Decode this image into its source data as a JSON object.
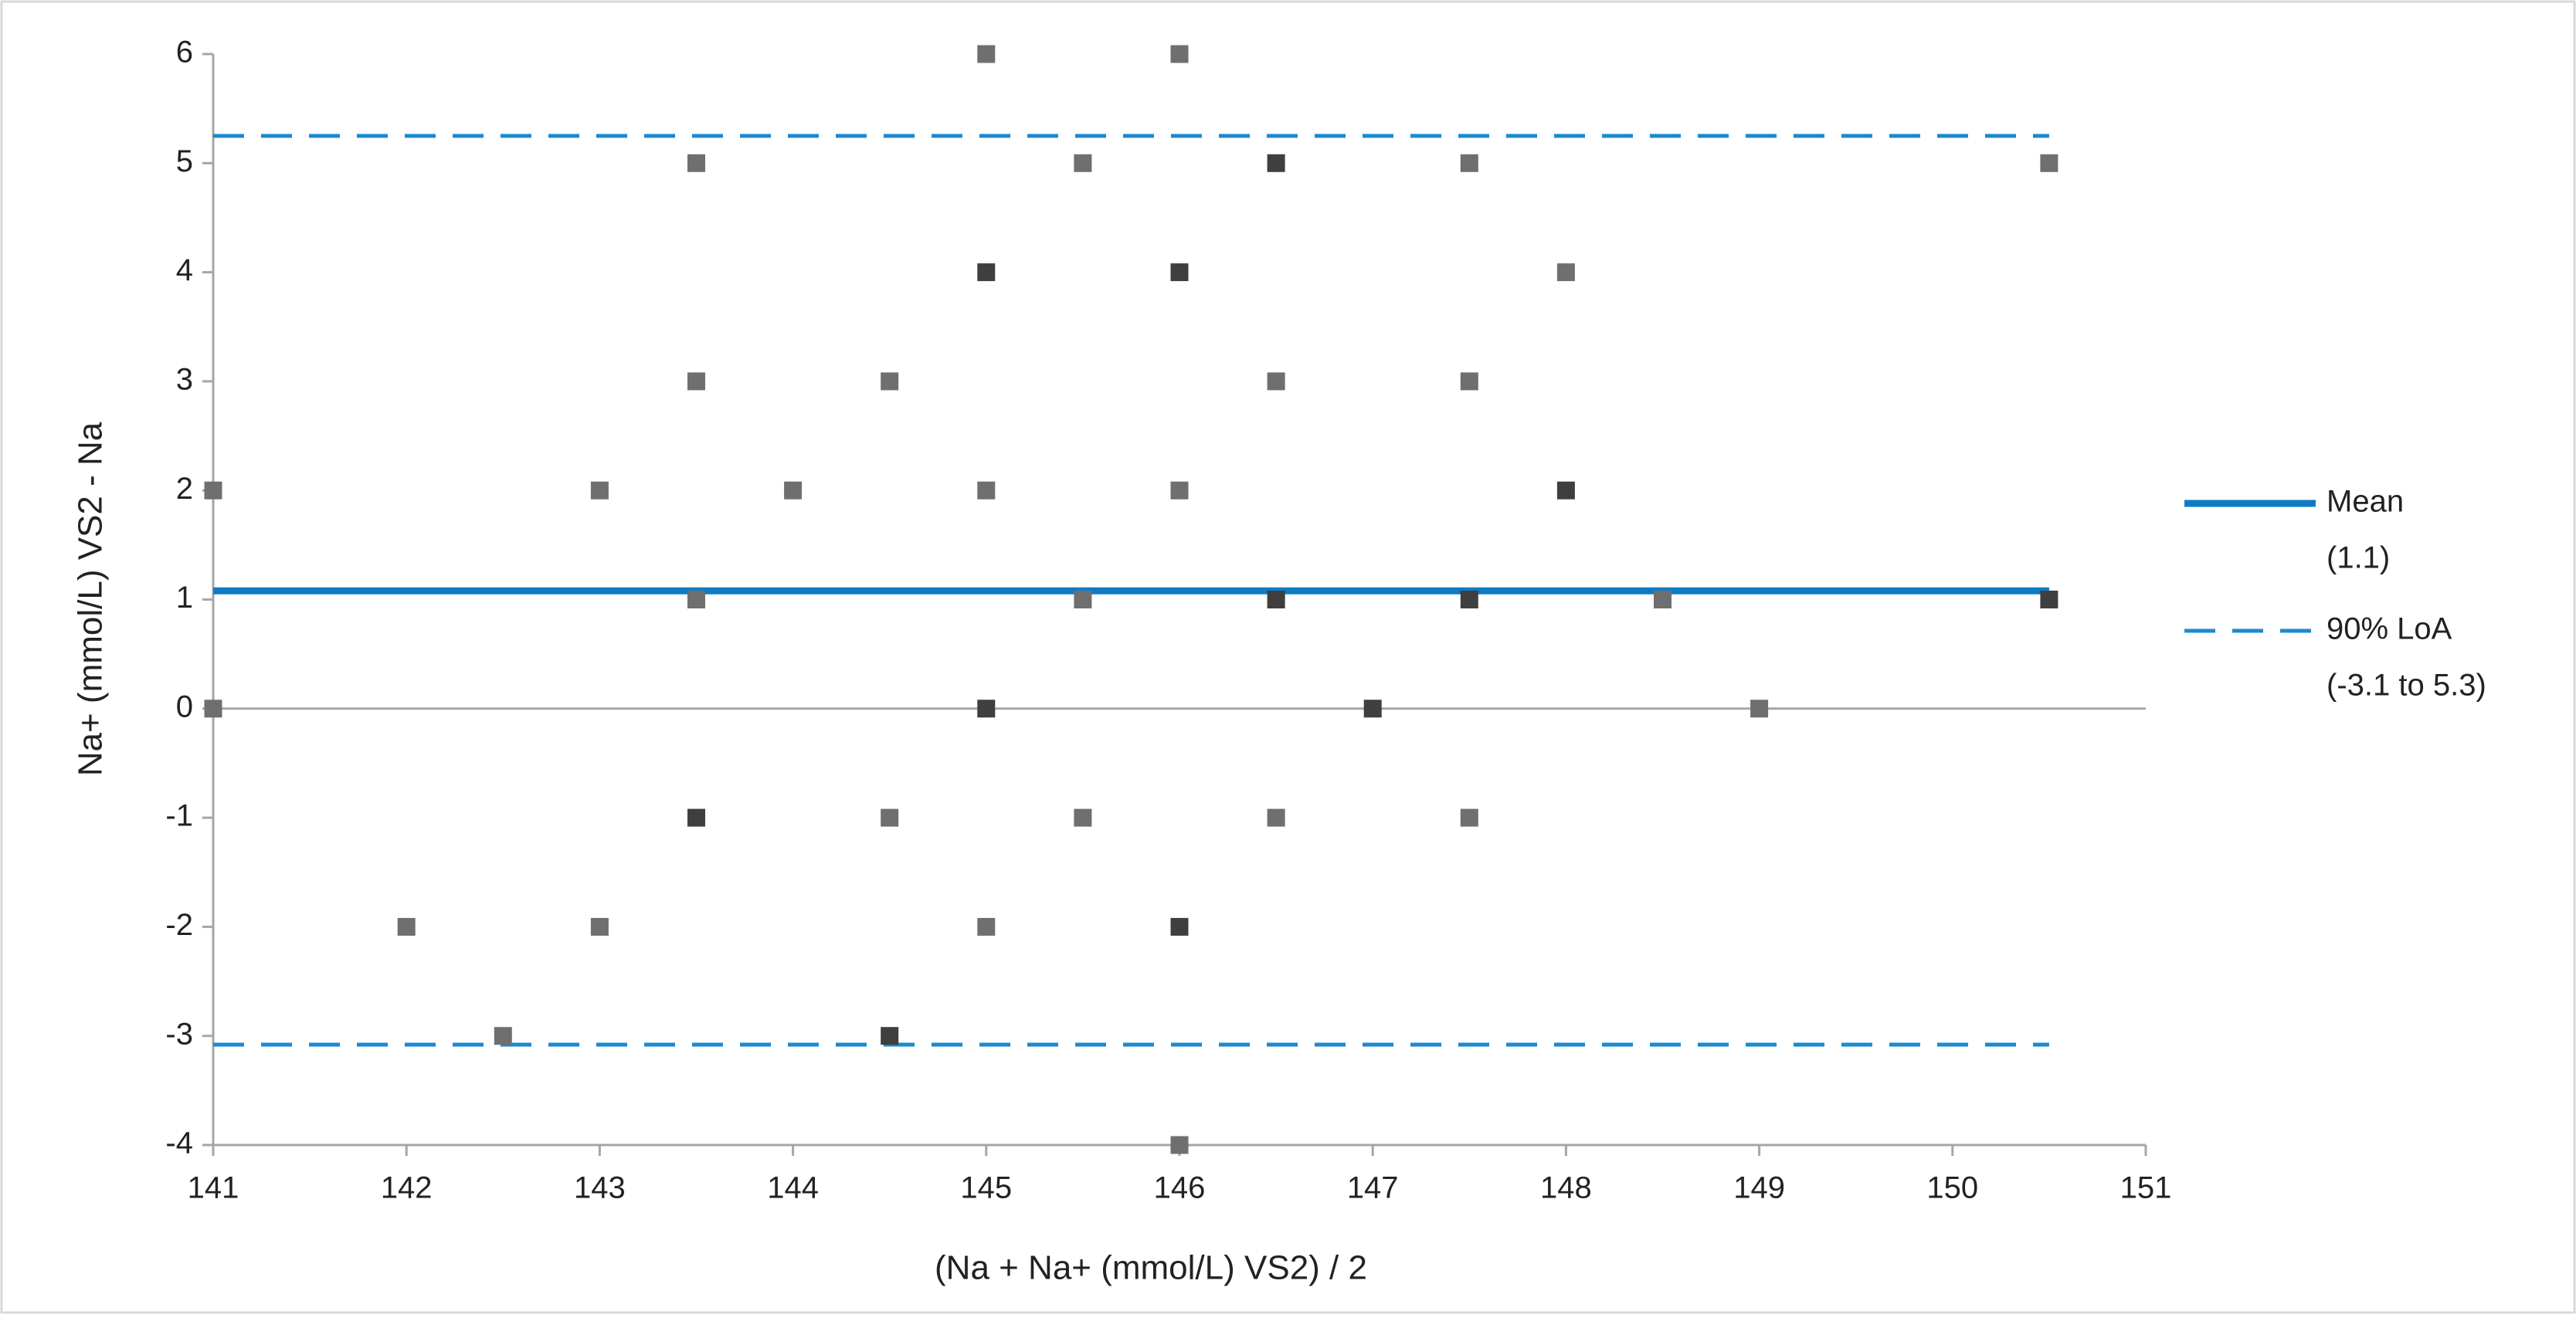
{
  "chart_data": {
    "type": "scatter",
    "xlabel": "(Na + Na+ (mmol/L) VS2) / 2",
    "ylabel": "Na+ (mmol/L) VS2 - Na",
    "x": [
      141,
      141,
      142,
      142.5,
      143,
      143,
      143.5,
      143.5,
      143.5,
      143.5,
      144,
      144.5,
      144.5,
      144.5,
      145,
      145,
      145,
      145,
      145,
      145.5,
      145.5,
      145.5,
      146,
      146,
      146,
      146,
      146,
      146.5,
      146.5,
      146.5,
      146.5,
      147,
      147.5,
      147.5,
      147.5,
      147.5,
      148,
      148,
      148.5,
      149,
      150.5,
      150.5
    ],
    "values": [
      2,
      0,
      -2,
      -3,
      2,
      -2,
      5,
      3,
      1,
      -1,
      2,
      3,
      -1,
      -3,
      6,
      4,
      2,
      0,
      -2,
      5,
      1,
      -1,
      6,
      4,
      2,
      -2,
      -4,
      5,
      3,
      1,
      -1,
      0,
      5,
      3,
      1,
      -1,
      4,
      2,
      1,
      0,
      5,
      1
    ],
    "point_colors": [
      "#6f6f6f",
      "#6f6f6f",
      "#6f6f6f",
      "#6f6f6f",
      "#6f6f6f",
      "#6f6f6f",
      "#6f6f6f",
      "#6f6f6f",
      "#6f6f6f",
      "#3f3f3f",
      "#6f6f6f",
      "#6f6f6f",
      "#6f6f6f",
      "#3f3f3f",
      "#6f6f6f",
      "#3f3f3f",
      "#6f6f6f",
      "#3f3f3f",
      "#6f6f6f",
      "#6f6f6f",
      "#6f6f6f",
      "#6f6f6f",
      "#6f6f6f",
      "#3f3f3f",
      "#6f6f6f",
      "#3f3f3f",
      "#6f6f6f",
      "#3f3f3f",
      "#6f6f6f",
      "#3f3f3f",
      "#6f6f6f",
      "#3f3f3f",
      "#6f6f6f",
      "#6f6f6f",
      "#3f3f3f",
      "#6f6f6f",
      "#6f6f6f",
      "#3f3f3f",
      "#6f6f6f",
      "#6f6f6f",
      "#6f6f6f",
      "#3f3f3f"
    ],
    "reference_lines": [
      {
        "name": "Mean",
        "label": "(1.1)",
        "value": 1.08,
        "span": [
          141,
          150.5
        ],
        "color": "#0e7bc4",
        "dashed": false
      },
      {
        "name": "90% LoA",
        "label": "(-3.1 to 5.3)",
        "values": [
          5.25,
          -3.08
        ],
        "span": [
          141,
          150.5
        ],
        "color": "#1a8ad0",
        "dashed": true
      }
    ],
    "xlim": [
      141,
      151
    ],
    "xticks": [
      141,
      142,
      143,
      144,
      145,
      146,
      147,
      148,
      149,
      150,
      151
    ],
    "ylim": [
      -4,
      6
    ],
    "yticks": [
      -4,
      -3,
      -2,
      -1,
      0,
      1,
      2,
      3,
      4,
      5,
      6
    ],
    "legend": "right"
  }
}
